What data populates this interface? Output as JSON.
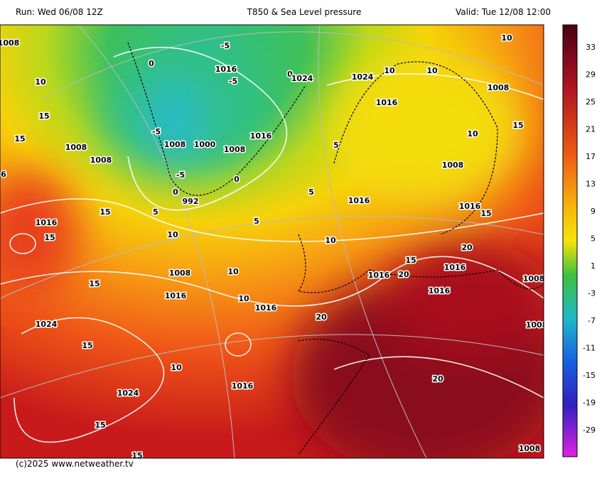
{
  "header": {
    "run": "Run: Wed 06/08 12Z",
    "title": "T850 & Sea Level pressure",
    "valid": "Valid: Tue 12/08 12:00"
  },
  "footer": "(c)2025 www.netweather.tv",
  "colorbar": {
    "labels": [
      "33",
      "29",
      "25",
      "21",
      "17",
      "13",
      "9",
      "5",
      "1",
      "-3",
      "-7",
      "-11",
      "-15",
      "-19",
      "-29"
    ]
  },
  "map": {
    "labels": [
      "1008",
      "10",
      "15",
      "15",
      "1008",
      "1008",
      "6",
      "15",
      "1016",
      "15",
      "10",
      "1008",
      "15",
      "1016",
      "1024",
      "15",
      "10",
      "1024",
      "15",
      "15",
      "1016",
      "10",
      "10",
      "1016",
      "20",
      "20",
      "1008",
      "1016",
      "1016",
      "20",
      "15",
      "1016",
      "1016",
      "20",
      "1008",
      "1008",
      "10",
      "5",
      "5",
      "5",
      "-5",
      "1008",
      "1000",
      "-5",
      "992",
      "0",
      "0",
      "1008",
      "1016",
      "1016",
      "-5",
      "-5",
      "0",
      "0",
      "1024",
      "1024",
      "10",
      "10",
      "10",
      "1016",
      "1008",
      "10",
      "15",
      "1008",
      "1016",
      "15",
      "5"
    ]
  }
}
